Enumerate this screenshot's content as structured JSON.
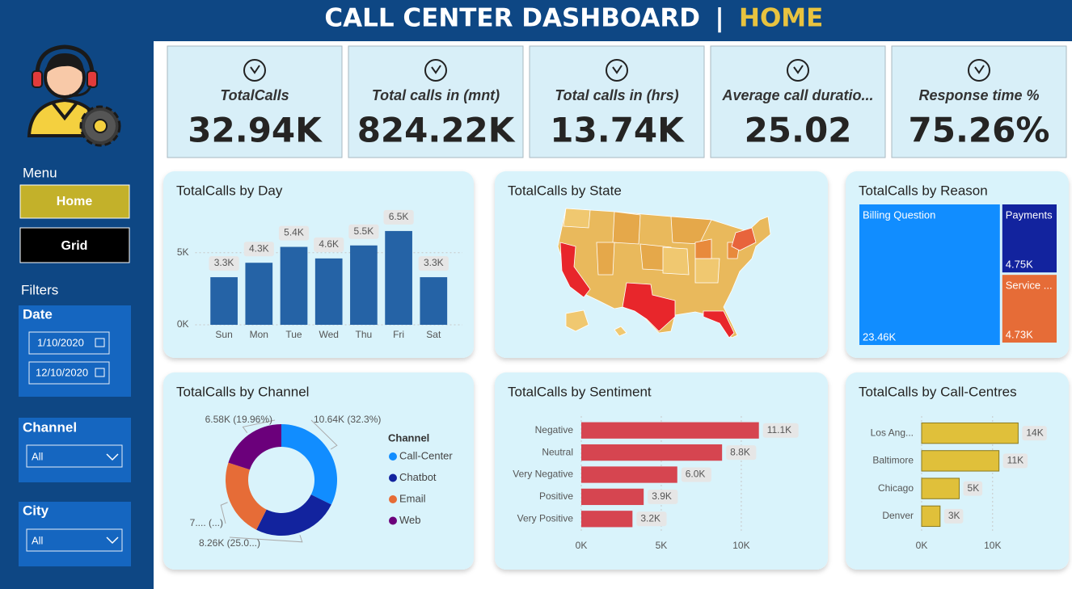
{
  "header": {
    "title": "CALL CENTER DASHBOARD",
    "separator": "|",
    "page": "HOME"
  },
  "sidebar": {
    "menu": {
      "label": "Menu",
      "buttons": [
        "Home",
        "Grid"
      ]
    },
    "filters": {
      "label": "Filters",
      "date": {
        "label": "Date",
        "from": "1/10/2020",
        "to": "12/10/2020"
      },
      "channel": {
        "label": "Channel",
        "value": "All"
      },
      "city": {
        "label": "City",
        "value": "All"
      }
    }
  },
  "kpis": [
    {
      "label": "TotalCalls",
      "value": "32.94K"
    },
    {
      "label": "Total calls in (mnt)",
      "value": "824.22K"
    },
    {
      "label": "Total calls in (hrs)",
      "value": "13.74K"
    },
    {
      "label": "Average call duratio...",
      "value": "25.02"
    },
    {
      "label": "Response time %",
      "value": "75.26%"
    }
  ],
  "chart_data": [
    {
      "type": "bar",
      "title": "TotalCalls by Day",
      "categories": [
        "Sun",
        "Mon",
        "Tue",
        "Wed",
        "Thu",
        "Fri",
        "Sat"
      ],
      "values": [
        3300,
        4300,
        5400,
        4600,
        5500,
        6500,
        3300
      ],
      "value_labels": [
        "3.3K",
        "4.3K",
        "5.4K",
        "4.6K",
        "5.5K",
        "6.5K",
        "3.3K"
      ],
      "color": "#2563a6",
      "ylim": [
        0,
        7000
      ],
      "yticks": [
        {
          "value": 0,
          "label": "0K"
        },
        {
          "value": 5000,
          "label": "5K"
        }
      ],
      "grid": true
    },
    {
      "type": "map",
      "title": "TotalCalls by State"
    },
    {
      "type": "treemap",
      "title": "TotalCalls by Reason",
      "categories": [
        "Billing Question",
        "Payments",
        "Service ..."
      ],
      "values": [
        23460,
        4750,
        4730
      ],
      "value_labels": [
        "23.46K",
        "4.75K",
        "4.73K"
      ],
      "colors": [
        "#118dff",
        "#12239e",
        "#e66c37"
      ]
    },
    {
      "type": "donut",
      "title": "TotalCalls by Channel",
      "legend_title": "Channel",
      "categories": [
        "Call-Center",
        "Chatbot",
        "Email",
        "Web"
      ],
      "values": [
        10640,
        8260,
        7460,
        6580
      ],
      "value_labels": [
        "10.64K (32.3%)",
        "8.26K (25.0...)",
        "7.... (...)",
        "6.58K (19.96%)"
      ],
      "colors": [
        "#118dff",
        "#12239e",
        "#e66c37",
        "#6b007b"
      ]
    },
    {
      "type": "hbar",
      "title": "TotalCalls by Sentiment",
      "categories": [
        "Negative",
        "Neutral",
        "Very Negative",
        "Positive",
        "Very Positive"
      ],
      "values": [
        11100,
        8800,
        6000,
        3900,
        3200
      ],
      "value_labels": [
        "11.1K",
        "8.8K",
        "6.0K",
        "3.9K",
        "3.2K"
      ],
      "color": "#d64550",
      "xlim": [
        0,
        14500
      ],
      "xticks": [
        {
          "value": 0,
          "label": "0K"
        },
        {
          "value": 5000,
          "label": "5K"
        },
        {
          "value": 10000,
          "label": "10K"
        }
      ],
      "grid": true
    },
    {
      "type": "hbar",
      "title": "TotalCalls by Call-Centres",
      "categories": [
        "Los Ang...",
        "Baltimore",
        "Chicago",
        "Denver"
      ],
      "values": [
        13600,
        10900,
        5300,
        2600
      ],
      "value_labels": [
        "14K",
        "11K",
        "5K",
        "3K"
      ],
      "color": "#e0c03a",
      "xlim": [
        0,
        18000
      ],
      "xticks": [
        {
          "value": 0,
          "label": "0K"
        },
        {
          "value": 10000,
          "label": "10K"
        }
      ],
      "grid": true
    }
  ]
}
